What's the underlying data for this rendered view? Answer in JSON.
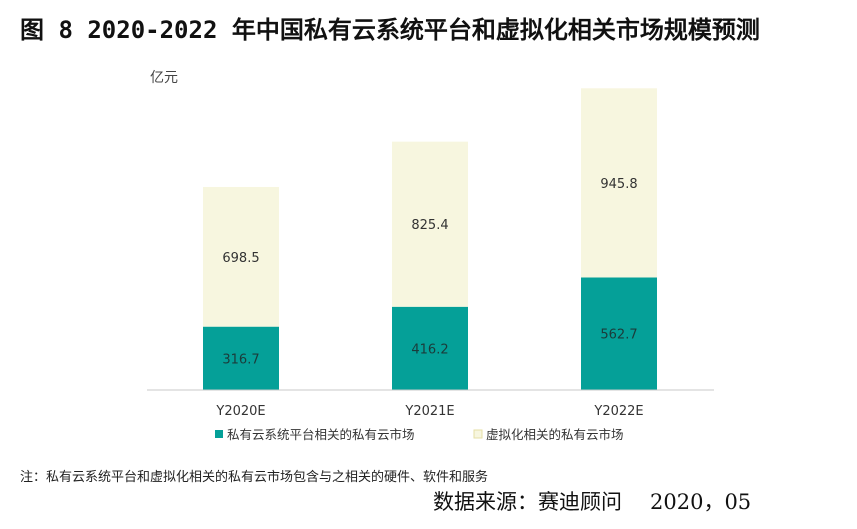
{
  "figure": {
    "label": "图 8",
    "title": "2020-2022 年中国私有云系统平台和虚拟化相关市场规模预测",
    "note": "注：私有云系统平台和虚拟化相关的私有云市场包含与之相关的硬件、软件和服务",
    "source": "数据来源：赛迪顾问",
    "date": "2020，05"
  },
  "chart_data": {
    "type": "bar",
    "stacked": true,
    "categories": [
      "Y2020E",
      "Y2021E",
      "Y2022E"
    ],
    "ylabel": "亿元",
    "ylim": [
      0,
      1560
    ],
    "grid": false,
    "legend_position": "bottom",
    "series": [
      {
        "name": "私有云系统平台相关的私有云市场",
        "values": [
          316.7,
          416.2,
          562.7
        ],
        "color": "#05a098"
      },
      {
        "name": "虚拟化相关的私有云市场",
        "values": [
          698.5,
          825.4,
          945.8
        ],
        "color": "#f7f6df"
      }
    ]
  }
}
